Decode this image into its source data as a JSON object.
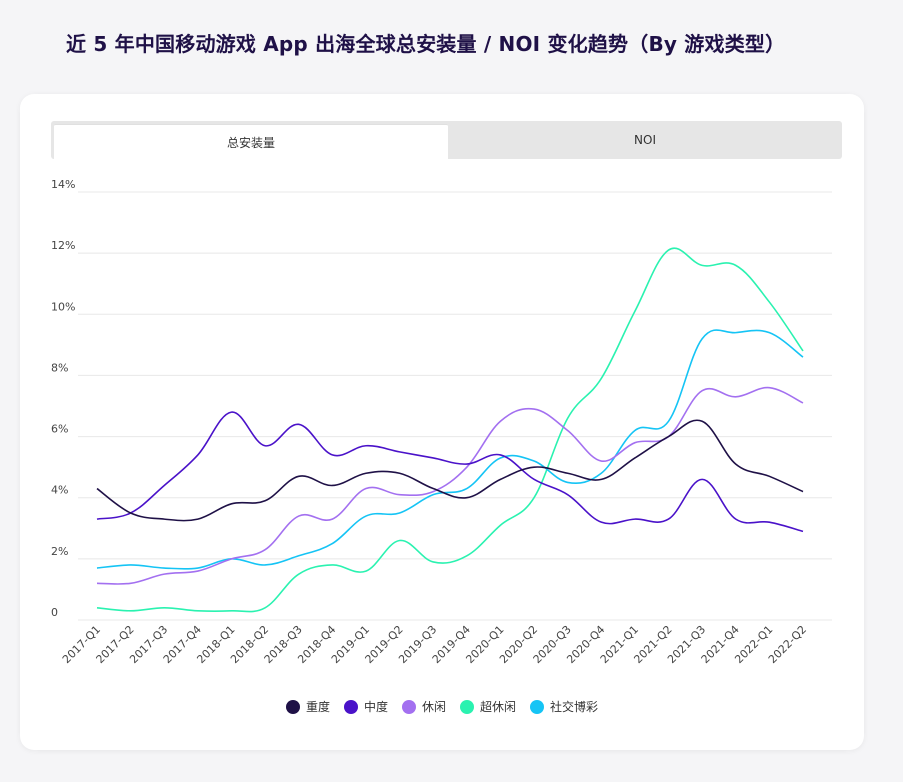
{
  "title": "近 5 年中国移动游戏 App 出海全球总安装量 / NOI 变化趋势（By 游戏类型）",
  "tabs": [
    {
      "label": "总安装量",
      "active": true
    },
    {
      "label": "NOI",
      "active": false
    }
  ],
  "chart_data": {
    "type": "line",
    "title": "近 5 年中国移动游戏 App 出海全球总安装量 / NOI 变化趋势（By 游戏类型）",
    "ylim": [
      0,
      14
    ],
    "y_ticks": [
      "0",
      "2%",
      "4%",
      "6%",
      "8%",
      "10%",
      "12%",
      "14%"
    ],
    "y_tick_values": [
      0,
      2,
      4,
      6,
      8,
      10,
      12,
      14
    ],
    "grid": true,
    "legend_position": "bottom-center",
    "categories": [
      "2017-Q1",
      "2017-Q2",
      "2017-Q3",
      "2017-Q4",
      "2018-Q1",
      "2018-Q2",
      "2018-Q3",
      "2018-Q4",
      "2019-Q1",
      "2019-Q2",
      "2019-Q3",
      "2019-Q4",
      "2020-Q1",
      "2020-Q2",
      "2020-Q3",
      "2020-Q4",
      "2021-Q1",
      "2021-Q2",
      "2021-Q3",
      "2021-Q4",
      "2022-Q1",
      "2022-Q2"
    ],
    "series": [
      {
        "name": "重度",
        "color": "#1f1147",
        "values": [
          4.3,
          3.5,
          3.3,
          3.3,
          3.8,
          3.9,
          4.7,
          4.4,
          4.8,
          4.8,
          4.3,
          4.0,
          4.6,
          5.0,
          4.8,
          4.6,
          5.3,
          6.0,
          6.5,
          5.1,
          4.7,
          4.2
        ]
      },
      {
        "name": "中度",
        "color": "#4a12c9",
        "values": [
          3.3,
          3.5,
          4.4,
          5.4,
          6.8,
          5.7,
          6.4,
          5.4,
          5.7,
          5.5,
          5.3,
          5.1,
          5.4,
          4.6,
          4.1,
          3.2,
          3.3,
          3.3,
          4.6,
          3.3,
          3.2,
          2.9
        ]
      },
      {
        "name": "休闲",
        "color": "#a370f0",
        "values": [
          1.2,
          1.2,
          1.5,
          1.6,
          2.0,
          2.3,
          3.4,
          3.3,
          4.3,
          4.1,
          4.2,
          5.0,
          6.5,
          6.9,
          6.2,
          5.2,
          5.8,
          6.0,
          7.5,
          7.3,
          7.6,
          7.1
        ]
      },
      {
        "name": "超休闲",
        "color": "#2af2b0",
        "values": [
          0.4,
          0.3,
          0.4,
          0.3,
          0.3,
          0.4,
          1.5,
          1.8,
          1.6,
          2.6,
          1.9,
          2.1,
          3.1,
          4.0,
          6.6,
          7.9,
          10.1,
          12.1,
          11.6,
          11.6,
          10.4,
          8.8
        ]
      },
      {
        "name": "社交博彩",
        "color": "#15c4f5",
        "values": [
          1.7,
          1.8,
          1.7,
          1.7,
          2.0,
          1.8,
          2.1,
          2.5,
          3.4,
          3.5,
          4.1,
          4.3,
          5.3,
          5.2,
          4.5,
          4.8,
          6.2,
          6.5,
          9.2,
          9.4,
          9.4,
          8.6
        ]
      }
    ]
  }
}
